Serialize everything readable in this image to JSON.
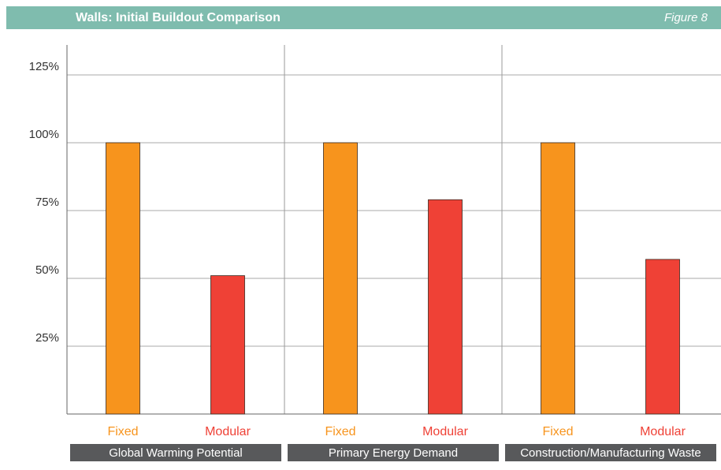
{
  "chart_data": {
    "type": "bar",
    "title": "Walls: Initial Buildout Comparison",
    "subtitle": "Figure 8",
    "categories": [
      "Global Warming Potential",
      "Primary Energy Demand",
      "Construction/Manufacturing Waste"
    ],
    "series": [
      {
        "name": "Fixed",
        "color": "#f7941d",
        "values": [
          100,
          100,
          100
        ]
      },
      {
        "name": "Modular",
        "color": "#ef4136",
        "values": [
          51,
          79,
          57
        ]
      }
    ],
    "ylim": [
      0,
      135
    ],
    "yticks": [
      {
        "value": 25,
        "label": "25%"
      },
      {
        "value": 50,
        "label": "50%"
      },
      {
        "value": 75,
        "label": "75%"
      },
      {
        "value": 100,
        "label": "100%"
      },
      {
        "value": 125,
        "label": "125%"
      }
    ],
    "grid": true
  }
}
